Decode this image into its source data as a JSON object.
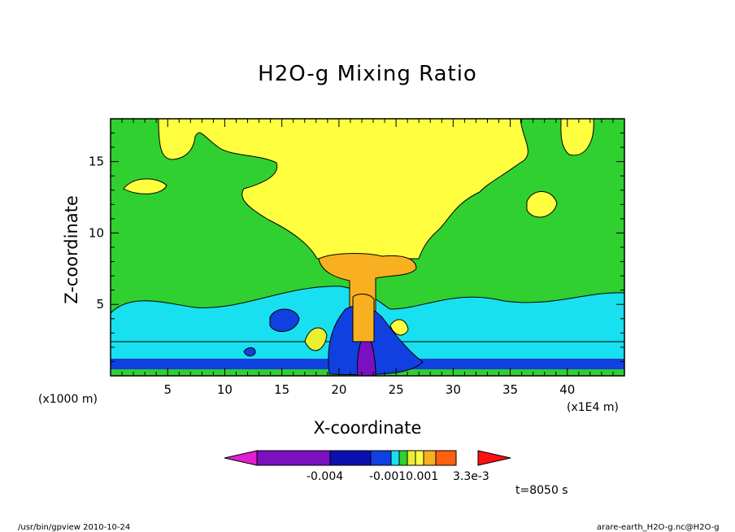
{
  "chart_data": {
    "type": "heatmap",
    "title": "H2O-g Mixing Ratio",
    "xlabel": "X-coordinate",
    "ylabel": "Z-coordinate",
    "x_unit_left": "(x1000 m)",
    "x_unit_right": "(x1E4 m)",
    "xlim": [
      0,
      45
    ],
    "ylim": [
      0,
      18
    ],
    "x_ticks": [
      5,
      10,
      15,
      20,
      25,
      30,
      35,
      40
    ],
    "y_ticks": [
      5,
      10,
      15
    ],
    "colorbar": {
      "colors": [
        "#e020d0",
        "#7a10c0",
        "#0a10b0",
        "#1040e0",
        "#18e0f0",
        "#30d030",
        "#e8f030",
        "#ffff40",
        "#f8b020",
        "#ff6010",
        "#ff1010"
      ],
      "labels": [
        "-0.004",
        "-0.0010.001",
        "3.3e-3"
      ]
    },
    "time_label": "t=8050 s",
    "footer_left": "/usr/bin/gpview   2010-10-24",
    "footer_right": "arare-earth_H2O-g.nc@H2O-g"
  }
}
